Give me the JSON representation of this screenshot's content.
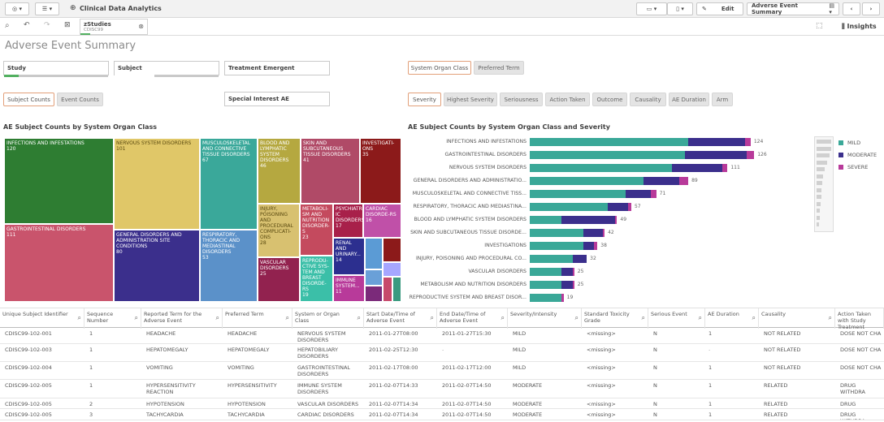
{
  "toolbar": {
    "app_title": "Clinical Data Analytics",
    "edit_label": "Edit",
    "sheet_label": "Adverse Event Summary",
    "insights_label": "Insights"
  },
  "selection": {
    "field_title": "zStudies",
    "field_value": "CDISC99"
  },
  "page_title": "Adverse Event Summary",
  "filters": {
    "study": "Study",
    "subject": "Subject",
    "treatment_emergent": "Treatment Emergent",
    "special_interest": "Special Interest AE"
  },
  "toggle_left": [
    {
      "label": "Subject Counts",
      "active": true
    },
    {
      "label": "Event Counts",
      "active": false
    }
  ],
  "toggle_right_top": [
    {
      "label": "System Organ Class",
      "active": true
    },
    {
      "label": "Preferred Term",
      "active": false
    }
  ],
  "dimension_tabs": [
    {
      "label": "Severity",
      "active": true
    },
    {
      "label": "Highest Severity",
      "active": false
    },
    {
      "label": "Seriousness",
      "active": false
    },
    {
      "label": "Action Taken",
      "active": false
    },
    {
      "label": "Outcome",
      "active": false
    },
    {
      "label": "Causality",
      "active": false
    },
    {
      "label": "AE Duration",
      "active": false
    },
    {
      "label": "Arm",
      "active": false
    }
  ],
  "treemap": {
    "title": "AE Subject Counts by System Organ Class",
    "cells": [
      {
        "label": "INFECTIONS AND INFESTATIONS",
        "value": "120",
        "color": "#2e7d32"
      },
      {
        "label": "GASTROINTESTINAL DISORDERS",
        "value": "111",
        "color": "#c9546c"
      },
      {
        "label": "NERVOUS SYSTEM DISORDERS",
        "value": "101",
        "color": "#e0c768"
      },
      {
        "label": "GENERAL DISORDERS AND ADMINISTRATION SITE CONDITIONS",
        "value": "80",
        "color": "#3b2f8c"
      },
      {
        "label": "MUSCULOSKELETAL AND CONNECTIVE TISSUE DISORDERS",
        "value": "67",
        "color": "#3aa89a"
      },
      {
        "label": "RESPIRATORY, THORACIC AND MEDIASTINAL DISORDERS",
        "value": "53",
        "color": "#5b91c9"
      },
      {
        "label": "BLOOD AND LYMPHATIC SYSTEM DISORDERS",
        "value": "46",
        "color": "#b5a840"
      },
      {
        "label": "INJURY, POISONING AND PROCEDURAL COMPLICATI-ONS",
        "value": "28",
        "color": "#d8c170"
      },
      {
        "label": "VASCULAR DISORDERS",
        "value": "25",
        "color": "#92224f"
      },
      {
        "label": "SKIN AND SUBCUTANEOUS TISSUE DISORDERS",
        "value": "41",
        "color": "#b04a67"
      },
      {
        "label": "METABOLI-SM AND NUTRITION DISORDER-S",
        "value": "23",
        "color": "#c44a5e"
      },
      {
        "label": "REPRODU-CTIVE SYS-TEM AND BREAST DISORDE-RS",
        "value": "19",
        "color": "#3bbfa8"
      },
      {
        "label": "INVESTIGATI-ONS",
        "value": "35",
        "color": "#8c1a1a"
      },
      {
        "label": "PSYCHIATR-IC DISORDERS",
        "value": "17",
        "color": "#a8204a"
      },
      {
        "label": "CARDIAC DISORDE-RS",
        "value": "16",
        "color": "#c050a8"
      },
      {
        "label": "RENAL AND URINARY...",
        "value": "14",
        "color": "#2c2f8f"
      },
      {
        "label": "IMMUNE SYSTEM...",
        "value": "11",
        "color": "#b83a9a"
      }
    ]
  },
  "chart_data": {
    "type": "bar",
    "title": "AE Subject Counts by System Organ Class and Severity",
    "orientation": "horizontal",
    "stacked": true,
    "categories": [
      "INFECTIONS AND INFESTATIONS",
      "GASTROINTESTINAL DISORDERS",
      "NERVOUS SYSTEM DISORDERS",
      "GENERAL DISORDERS AND ADMINISTRATIO...",
      "MUSCULOSKELETAL AND CONNECTIVE TISS...",
      "RESPIRATORY, THORACIC AND MEDIASTINA...",
      "BLOOD AND LYMPHATIC SYSTEM DISORDERS",
      "SKIN AND SUBCUTANEOUS TISSUE DISORDE...",
      "INVESTIGATIONS",
      "INJURY, POISONING AND PROCEDURAL CO...",
      "VASCULAR DISORDERS",
      "METABOLISM AND NUTRITION DISORDERS",
      "REPRODUCTIVE SYSTEM AND BREAST DISOR..."
    ],
    "totals": [
      124,
      126,
      111,
      89,
      71,
      57,
      49,
      42,
      38,
      32,
      25,
      25,
      19
    ],
    "series": [
      {
        "name": "MILD",
        "color": "#3aa898",
        "values": [
          89,
          87,
          80,
          64,
          54,
          44,
          18,
          30,
          30,
          24,
          18,
          18,
          18
        ]
      },
      {
        "name": "MODERATE",
        "color": "#3b2f8c",
        "values": [
          32,
          35,
          28,
          20,
          14,
          11,
          30,
          11,
          6,
          8,
          6,
          6,
          0
        ]
      },
      {
        "name": "SEVERE",
        "color": "#b83a9a",
        "values": [
          3,
          4,
          3,
          5,
          3,
          2,
          1,
          1,
          2,
          0,
          1,
          1,
          1
        ]
      }
    ],
    "xlim": [
      0,
      130
    ],
    "legend_position": "right"
  },
  "table": {
    "headers": [
      "Unique Subject Identifier",
      "Sequence Number",
      "Reported Term for the Adverse Event",
      "Preferred Term",
      "System or Organ Class",
      "Start Date/Time of Adverse Event",
      "End Date/Time of Adverse Event",
      "Severity/Intensity",
      "Standard Toxicity Grade",
      "Serious Event",
      "AE Duration",
      "Causality",
      "Action Taken with Study Treatment"
    ],
    "rows": [
      [
        "CDISC99-102-001",
        "1",
        "HEADACHE",
        "HEADACHE",
        "NERVOUS SYSTEM DISORDERS",
        "2011-01-27T08:00",
        "2011-01-27T15:30",
        "MILD",
        "<missing>",
        "N",
        "1",
        "NOT RELATED",
        "DOSE NOT CHA"
      ],
      [
        "CDISC99-102-003",
        "1",
        "HEPATOMEGALY",
        "HEPATOMEGALY",
        "HEPATOBILIARY DISORDERS",
        "2011-02-25T12:30",
        "-",
        "MILD",
        "<missing>",
        "N",
        "-",
        "NOT RELATED",
        "DOSE NOT CHA"
      ],
      [
        "CDISC99-102-004",
        "1",
        "VOMITING",
        "VOMITING",
        "GASTROINTESTINAL DISORDERS",
        "2011-02-17T08:00",
        "2011-02-17T12:00",
        "MILD",
        "<missing>",
        "N",
        "1",
        "NOT RELATED",
        "DOSE NOT CHA"
      ],
      [
        "CDISC99-102-005",
        "1",
        "HYPERSENSITIVITY REACTION",
        "HYPERSENSITIVITY",
        "IMMUNE SYSTEM DISORDERS",
        "2011-02-07T14:33",
        "2011-02-07T14:50",
        "MODERATE",
        "<missing>",
        "N",
        "1",
        "RELATED",
        "DRUG WITHDRA"
      ],
      [
        "CDISC99-102-005",
        "2",
        "HYPOTENSION",
        "HYPOTENSION",
        "VASCULAR DISORDERS",
        "2011-02-07T14:34",
        "2011-02-07T14:50",
        "MODERATE",
        "<missing>",
        "N",
        "1",
        "RELATED",
        "DRUG WITHDRA"
      ],
      [
        "CDISC99-102-005",
        "3",
        "TACHYCARDIA",
        "TACHYCARDIA",
        "CARDIAC DISORDERS",
        "2011-02-07T14:34",
        "2011-02-07T14:50",
        "MODERATE",
        "<missing>",
        "N",
        "1",
        "RELATED",
        "DRUG WITHDRA"
      ]
    ]
  }
}
